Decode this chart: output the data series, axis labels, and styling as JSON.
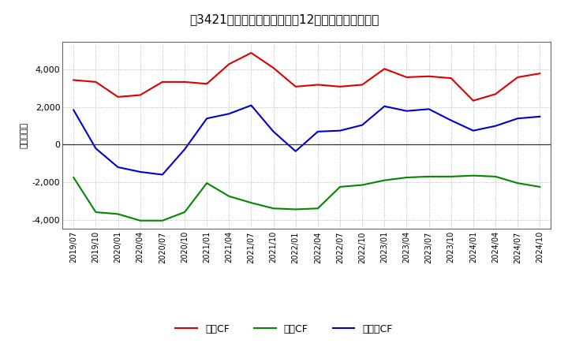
{
  "title": "　3421、キャッシュフローの12か月移動合計の推移",
  "ylabel": "（百万円）",
  "ylim": [
    -4500,
    5500
  ],
  "yticks": [
    -4000,
    -2000,
    0,
    2000,
    4000
  ],
  "background_color": "#ffffff",
  "grid_color": "#aaaaaa",
  "x_labels": [
    "2019/07",
    "2019/10",
    "2020/01",
    "2020/04",
    "2020/07",
    "2020/10",
    "2021/01",
    "2021/04",
    "2021/07",
    "2021/10",
    "2022/01",
    "2022/04",
    "2022/07",
    "2022/10",
    "2023/01",
    "2023/04",
    "2023/07",
    "2023/10",
    "2024/01",
    "2024/04",
    "2024/07",
    "2024/10"
  ],
  "eigyo_cf": [
    3450,
    3350,
    2550,
    2650,
    3350,
    3350,
    3250,
    4300,
    4900,
    4100,
    3100,
    3200,
    3100,
    3200,
    4050,
    3600,
    3650,
    3550,
    2350,
    2700,
    3600,
    3800
  ],
  "toshi_cf": [
    -1750,
    -3600,
    -3700,
    -4050,
    -4050,
    -3600,
    -2050,
    -2750,
    -3100,
    -3400,
    -3450,
    -3400,
    -2250,
    -2150,
    -1900,
    -1750,
    -1700,
    -1700,
    -1650,
    -1700,
    -2050,
    -2250
  ],
  "free_cf": [
    1850,
    -200,
    -1200,
    -1450,
    -1600,
    -250,
    1400,
    1650,
    2100,
    700,
    -350,
    700,
    750,
    1050,
    2050,
    1800,
    1900,
    1300,
    750,
    1000,
    1400,
    1500
  ],
  "eigyo_color": "#dd0000",
  "toshi_color": "#008800",
  "free_color": "#0000cc",
  "legend_labels": [
    "営業CF",
    "投資CF",
    "フリーCF"
  ]
}
